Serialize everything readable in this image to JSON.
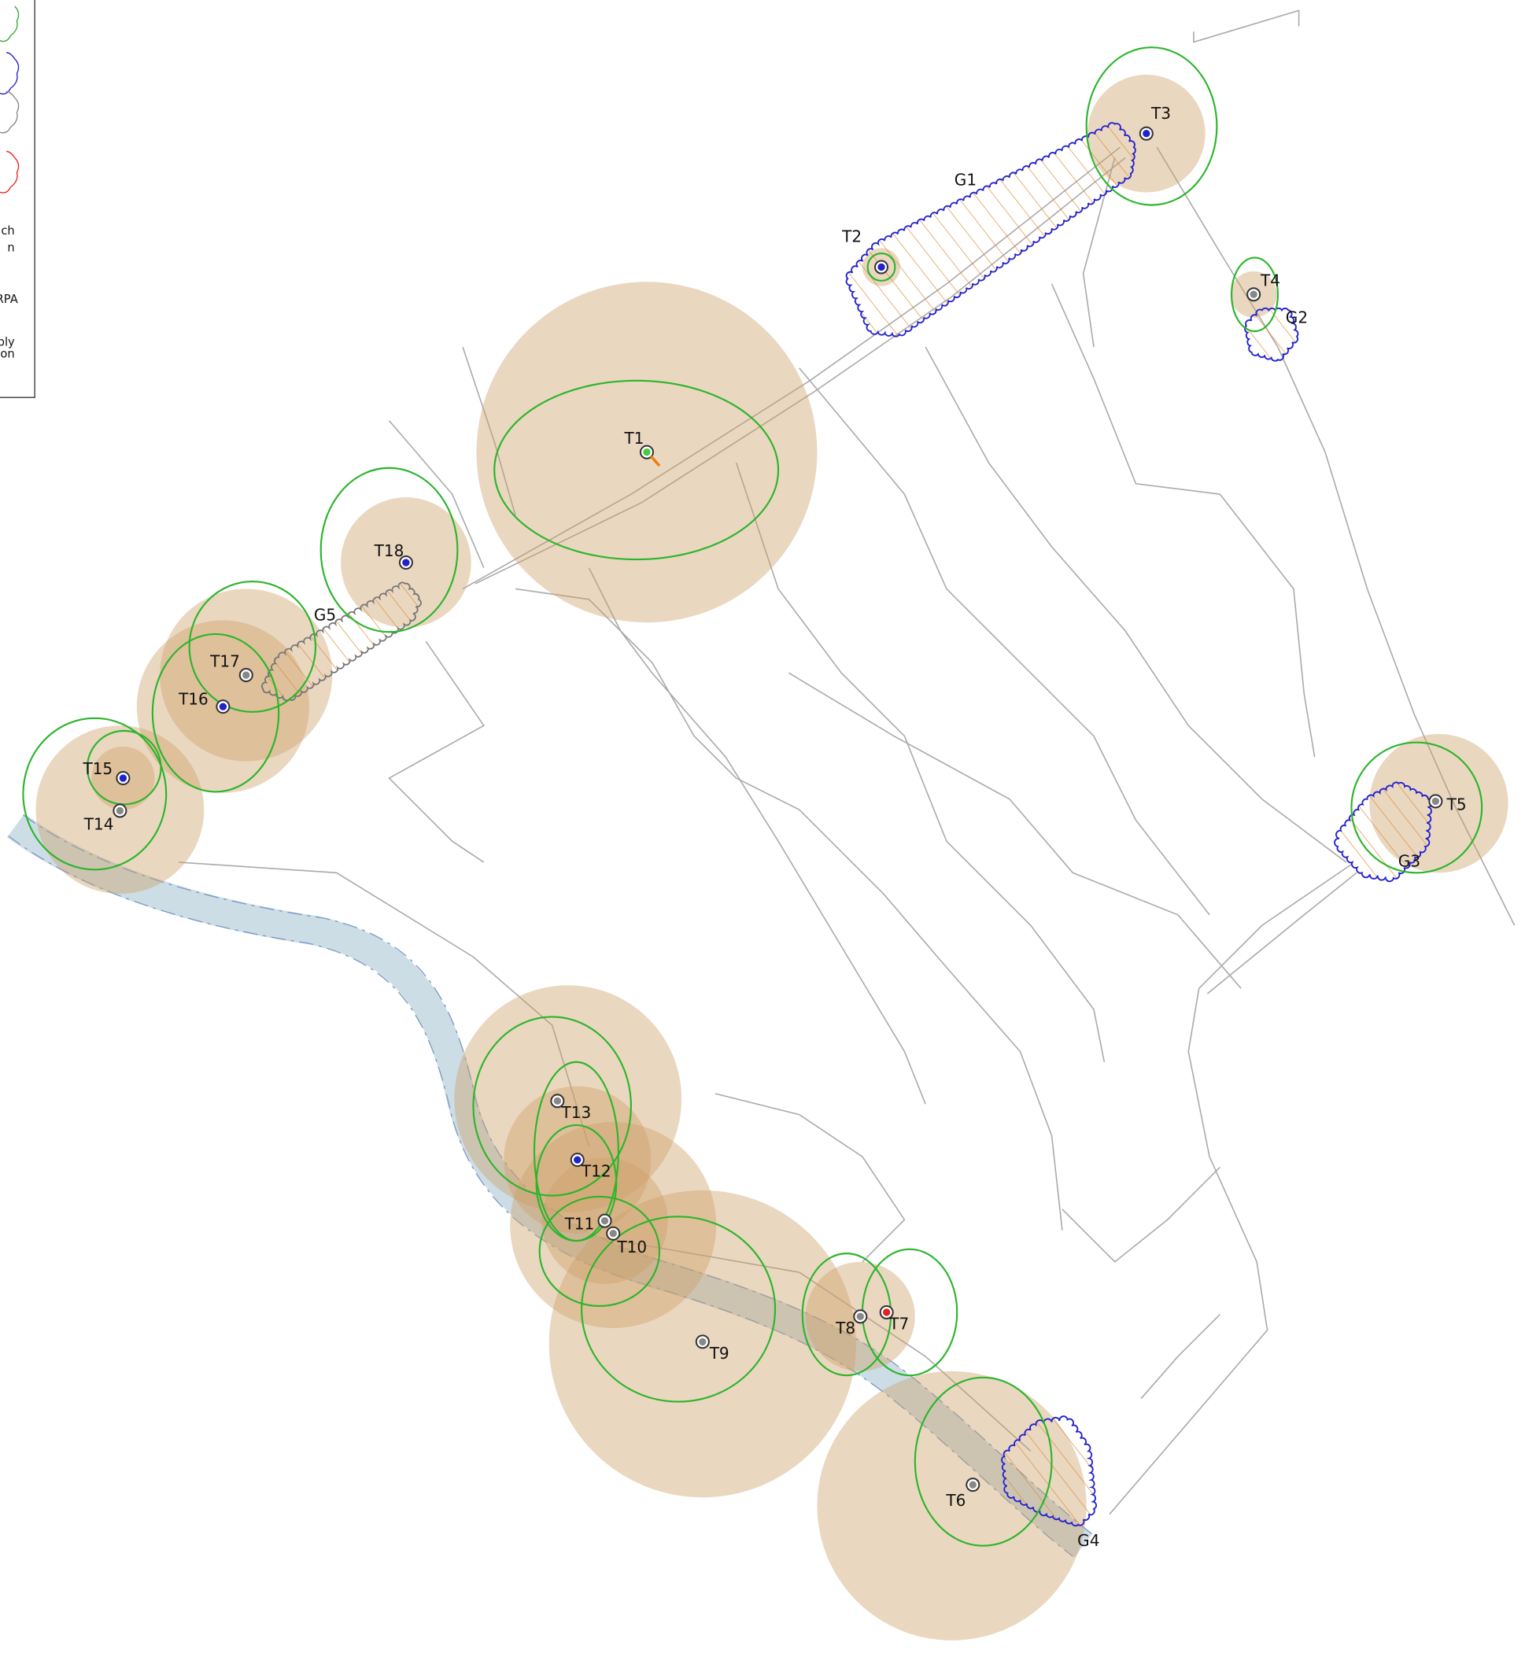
{
  "legend": {
    "items": [
      "ch",
      "n",
      "RPA",
      "pply",
      "on"
    ]
  },
  "trees": [
    {
      "label": "T1"
    },
    {
      "label": "T2"
    },
    {
      "label": "T3"
    },
    {
      "label": "T4"
    },
    {
      "label": "T5"
    },
    {
      "label": "T6"
    },
    {
      "label": "T7"
    },
    {
      "label": "T8"
    },
    {
      "label": "T9"
    },
    {
      "label": "T10"
    },
    {
      "label": "T11"
    },
    {
      "label": "T12"
    },
    {
      "label": "T13"
    },
    {
      "label": "T14"
    },
    {
      "label": "T15"
    },
    {
      "label": "T16"
    },
    {
      "label": "T17"
    },
    {
      "label": "T18"
    }
  ],
  "groups": [
    {
      "label": "G1"
    },
    {
      "label": "G2"
    },
    {
      "label": "G3"
    },
    {
      "label": "G4"
    },
    {
      "label": "G5"
    }
  ]
}
